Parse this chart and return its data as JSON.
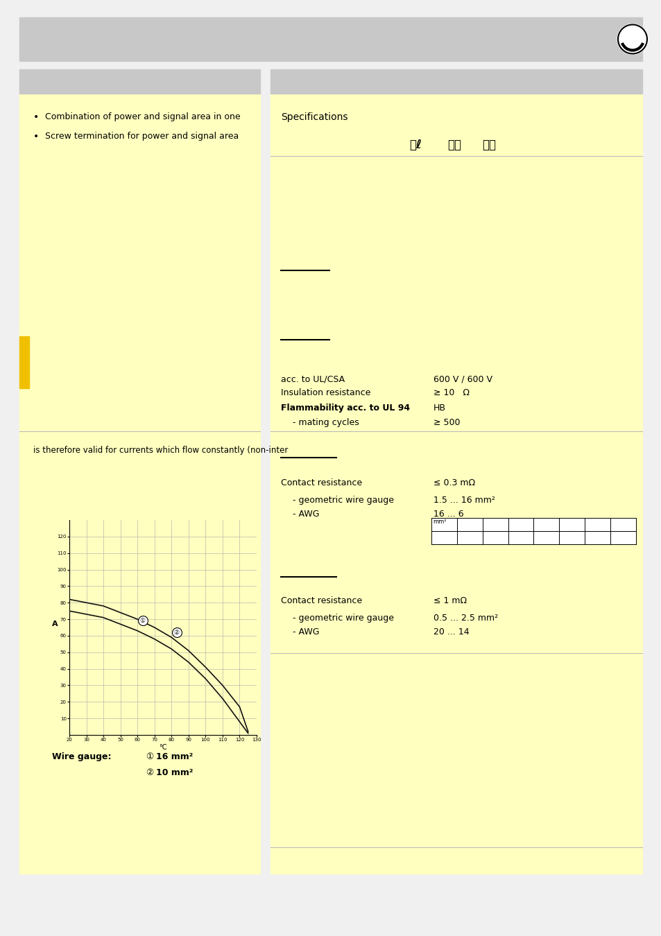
{
  "page_bg": "#f0f0f0",
  "header_bg": "#c8c8c8",
  "panel_bg": "#ffffc0",
  "white": "#ffffff",
  "black": "#000000",
  "gray_line": "#bbbbbb",
  "gold_strip_color": "#f0c000",
  "left_panel": {
    "bullet1": "Combination of power and signal area in one",
    "bullet2": "Screw termination for power and signal area",
    "flow_text": "is therefore valid for currents which flow constantly (non-inter",
    "wire_gauge_label": "Wire gauge:",
    "wire1_num": "①",
    "wire1_val": "16 mm²",
    "wire2_num": "②",
    "wire2_val": "10 mm²"
  },
  "right_panel": {
    "specs_title": "Specifications",
    "line1_label": "acc. to UL/CSA",
    "line1_val": "600 V / 600 V",
    "line2_label": "Insulation resistance",
    "line2_val": "≥ 10   Ω",
    "line3_label": "Flammability acc. to UL 94",
    "line3_val": "HB",
    "line4_label": " - mating cycles",
    "line4_val": "≥ 500",
    "power_contact_label": "Contact resistance",
    "power_contact_val": "≤ 0.3 mΩ",
    "power_geo_label": " - geometric wire gauge",
    "power_geo_val": "1.5 ... 16 mm²",
    "power_awg_label": " - AWG",
    "power_awg_val": "16 ... 6",
    "signal_contact_label": "Contact resistance",
    "signal_contact_val": "≤ 1 mΩ",
    "signal_geo_label": " - geometric wire gauge",
    "signal_geo_val": "0.5 ... 2.5 mm²",
    "signal_awg_label": " - AWG",
    "signal_awg_val": "20 ... 14"
  },
  "chart": {
    "x_min": 20,
    "x_max": 130,
    "y_min": 0,
    "y_max": 130,
    "x_ticks": [
      20,
      30,
      40,
      50,
      60,
      70,
      80,
      90,
      100,
      110,
      120,
      130
    ],
    "y_ticks": [
      10,
      20,
      30,
      40,
      50,
      60,
      70,
      80,
      90,
      100,
      110,
      120
    ],
    "xlabel": "°C",
    "ylabel": "A",
    "curve1_x": [
      20,
      30,
      40,
      50,
      60,
      70,
      80,
      90,
      100,
      110,
      120,
      125
    ],
    "curve1_y": [
      82,
      80,
      78,
      74,
      70,
      65,
      59,
      51,
      41,
      30,
      17,
      2
    ],
    "curve2_x": [
      20,
      30,
      40,
      50,
      60,
      70,
      80,
      90,
      100,
      110,
      120,
      125
    ],
    "curve2_y": [
      75,
      73,
      71,
      67,
      63,
      58,
      52,
      44,
      34,
      22,
      8,
      1
    ],
    "marker1_x": 63,
    "marker1_y": 69,
    "marker2_x": 83,
    "marker2_y": 62,
    "grid_color": "#aaaaaa",
    "curve_color": "#111111"
  }
}
